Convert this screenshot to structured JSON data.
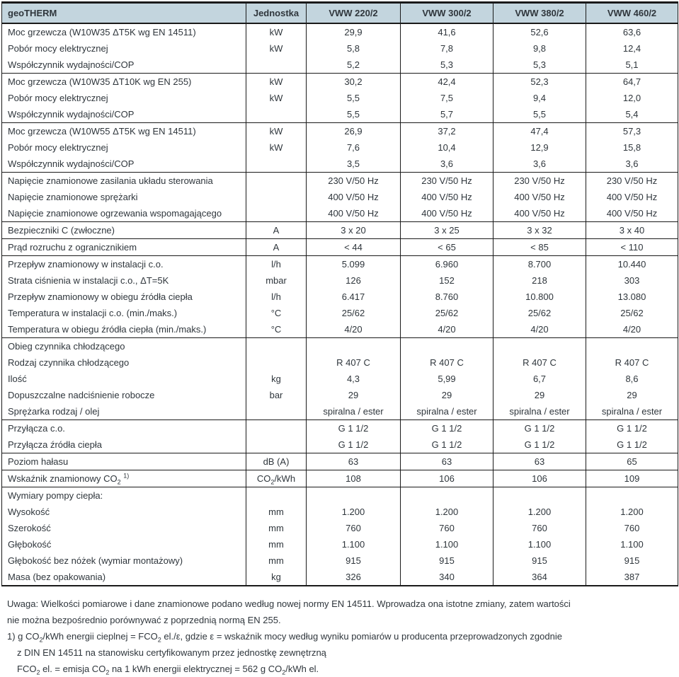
{
  "colors": {
    "header_bg": "#c3d5de",
    "border": "#1a1a1a",
    "text": "#2f363c"
  },
  "header": {
    "product_label": "geoTHERM",
    "columns": [
      "Jednostka",
      "VWW 220/2",
      "VWW 300/2",
      "VWW 380/2",
      "VWW 460/2"
    ]
  },
  "table": {
    "groups": [
      {
        "rows": [
          {
            "label": "Moc grzewcza (W10W35 ΔT5K wg EN 14511)",
            "unit": "kW",
            "values": [
              "29,9",
              "41,6",
              "52,6",
              "63,6"
            ]
          },
          {
            "label": "Pobór mocy elektrycznej",
            "unit": "kW",
            "values": [
              "5,8",
              "7,8",
              "9,8",
              "12,4"
            ]
          },
          {
            "label": "Współczynnik wydajności/COP",
            "unit": "",
            "values": [
              "5,2",
              "5,3",
              "5,3",
              "5,1"
            ]
          }
        ]
      },
      {
        "rows": [
          {
            "label": "Moc grzewcza (W10W35 ΔT10K wg EN 255)",
            "unit": "kW",
            "values": [
              "30,2",
              "42,4",
              "52,3",
              "64,7"
            ]
          },
          {
            "label": "Pobór mocy elektrycznej",
            "unit": "kW",
            "values": [
              "5,5",
              "7,5",
              "9,4",
              "12,0"
            ]
          },
          {
            "label": "Współczynnik wydajności/COP",
            "unit": "",
            "values": [
              "5,5",
              "5,7",
              "5,5",
              "5,4"
            ]
          }
        ]
      },
      {
        "rows": [
          {
            "label": "Moc grzewcza (W10W55 ΔT5K wg EN 14511)",
            "unit": "kW",
            "values": [
              "26,9",
              "37,2",
              "47,4",
              "57,3"
            ]
          },
          {
            "label": "Pobór mocy elektrycznej",
            "unit": "kW",
            "values": [
              "7,6",
              "10,4",
              "12,9",
              "15,8"
            ]
          },
          {
            "label": "Współczynnik wydajności/COP",
            "unit": "",
            "values": [
              "3,5",
              "3,6",
              "3,6",
              "3,6"
            ]
          }
        ]
      },
      {
        "rows": [
          {
            "label": "Napięcie znamionowe zasilania układu sterowania",
            "unit": "",
            "values": [
              "230 V/50 Hz",
              "230 V/50 Hz",
              "230 V/50 Hz",
              "230 V/50 Hz"
            ]
          },
          {
            "label": "Napięcie znamionowe sprężarki",
            "unit": "",
            "values": [
              "400 V/50 Hz",
              "400 V/50 Hz",
              "400 V/50 Hz",
              "400 V/50 Hz"
            ]
          },
          {
            "label": "Napięcie znamionowe ogrzewania wspomagającego",
            "unit": "",
            "values": [
              "400 V/50 Hz",
              "400 V/50 Hz",
              "400 V/50 Hz",
              "400 V/50 Hz"
            ]
          }
        ]
      },
      {
        "rows": [
          {
            "label": "Bezpieczniki C (zwłoczne)",
            "unit": "A",
            "values": [
              "3 x 20",
              "3 x 25",
              "3 x 32",
              "3 x 40"
            ]
          }
        ]
      },
      {
        "rows": [
          {
            "label": "Prąd rozruchu z ogranicznikiem",
            "unit": "A",
            "values": [
              "< 44",
              "< 65",
              "< 85",
              "< 110"
            ]
          }
        ]
      },
      {
        "rows": [
          {
            "label": "Przepływ znamionowy w instalacji c.o.",
            "unit": "l/h",
            "values": [
              "5.099",
              "6.960",
              "8.700",
              "10.440"
            ]
          },
          {
            "label": "Strata ciśnienia w instalacji c.o., ΔT=5K",
            "unit": "mbar",
            "values": [
              "126",
              "152",
              "218",
              "303"
            ]
          },
          {
            "label": "Przepływ znamionowy w obiegu źródła ciepła",
            "unit": "l/h",
            "values": [
              "6.417",
              "8.760",
              "10.800",
              "13.080"
            ]
          },
          {
            "label": "Temperatura w instalacji c.o. (min./maks.)",
            "unit": "°C",
            "values": [
              "25/62",
              "25/62",
              "25/62",
              "25/62"
            ]
          },
          {
            "label": "Temperatura w obiegu źródła ciepła (min./maks.)",
            "unit": "°C",
            "values": [
              "4/20",
              "4/20",
              "4/20",
              "4/20"
            ]
          }
        ]
      },
      {
        "rows": [
          {
            "label": "Obieg czynnika chłodzącego",
            "unit": "",
            "values": [
              "",
              "",
              "",
              ""
            ]
          },
          {
            "label": "Rodzaj czynnika chłodzącego",
            "unit": "",
            "values": [
              "R 407 C",
              "R 407 C",
              "R 407 C",
              "R 407 C"
            ]
          },
          {
            "label": "Ilość",
            "unit": "kg",
            "values": [
              "4,3",
              "5,99",
              "6,7",
              "8,6"
            ]
          },
          {
            "label": "Dopuszczalne nadciśnienie robocze",
            "unit": "bar",
            "values": [
              "29",
              "29",
              "29",
              "29"
            ]
          },
          {
            "label": "Sprężarka rodzaj / olej",
            "unit": "",
            "values": [
              "spiralna / ester",
              "spiralna / ester",
              "spiralna / ester",
              "spiralna / ester"
            ]
          }
        ]
      },
      {
        "rows": [
          {
            "label": "Przyłącza c.o.",
            "unit": "",
            "values": [
              "G 1 1/2",
              "G 1 1/2",
              "G 1 1/2",
              "G 1 1/2"
            ]
          },
          {
            "label": "Przyłącza źródła ciepła",
            "unit": "",
            "values": [
              "G 1 1/2",
              "G 1 1/2",
              "G 1 1/2",
              "G 1 1/2"
            ]
          }
        ]
      },
      {
        "rows": [
          {
            "label": "Poziom hałasu",
            "unit": "dB (A)",
            "values": [
              "63",
              "63",
              "63",
              "65"
            ]
          }
        ]
      },
      {
        "rows": [
          {
            "label": [
              {
                "t": "Wskaźnik znamionowy CO"
              },
              {
                "t": "2",
                "s": "sub"
              },
              {
                "t": " "
              },
              {
                "t": "1)",
                "s": "sup"
              }
            ],
            "unit": [
              {
                "t": "CO"
              },
              {
                "t": "2",
                "s": "sub"
              },
              {
                "t": "/kWh"
              }
            ],
            "values": [
              "108",
              "106",
              "106",
              "109"
            ]
          }
        ]
      },
      {
        "rows": [
          {
            "label": "Wymiary pompy ciepła:",
            "unit": "",
            "values": [
              "",
              "",
              "",
              ""
            ]
          },
          {
            "label": "Wysokość",
            "unit": "mm",
            "values": [
              "1.200",
              "1.200",
              "1.200",
              "1.200"
            ]
          },
          {
            "label": "Szerokość",
            "unit": "mm",
            "values": [
              "760",
              "760",
              "760",
              "760"
            ]
          },
          {
            "label": "Głębokość",
            "unit": "mm",
            "values": [
              "1.100",
              "1.100",
              "1.100",
              "1.100"
            ]
          },
          {
            "label": "Głębokość bez nóżek (wymiar montażowy)",
            "unit": "mm",
            "values": [
              "915",
              "915",
              "915",
              "915"
            ]
          },
          {
            "label": "Masa (bez opakowania)",
            "unit": "kg",
            "values": [
              "326",
              "340",
              "364",
              "387"
            ]
          }
        ]
      }
    ]
  },
  "notes": {
    "lines": [
      {
        "indent": false,
        "segments": [
          {
            "t": "Uwaga: Wielkości pomiarowe i dane znamionowe podano według nowej normy EN 14511. Wprowadza ona istotne zmiany, zatem wartości"
          }
        ]
      },
      {
        "indent": false,
        "segments": [
          {
            "t": "nie można bezpośrednio porównywać z poprzednią normą EN 255."
          }
        ]
      },
      {
        "indent": false,
        "segments": [
          {
            "t": "1) g CO"
          },
          {
            "t": "2",
            "s": "sub"
          },
          {
            "t": "/kWh energii cieplnej = FCO"
          },
          {
            "t": "2",
            "s": "sub"
          },
          {
            "t": " el./ε, gdzie ε = wskaźnik mocy według wyniku pomiarów u producenta przeprowadzonych zgodnie"
          }
        ]
      },
      {
        "indent": true,
        "segments": [
          {
            "t": "z DIN EN 14511 na stanowisku certyfikowanym przez jednostkę zewnętrzną"
          }
        ]
      },
      {
        "indent": true,
        "segments": [
          {
            "t": "FCO"
          },
          {
            "t": "2",
            "s": "sub"
          },
          {
            "t": " el. = emisja CO"
          },
          {
            "t": "2",
            "s": "sub"
          },
          {
            "t": " na 1 kWh energii elektrycznej = 562 g CO"
          },
          {
            "t": "2",
            "s": "sub"
          },
          {
            "t": "/kWh el."
          }
        ]
      }
    ]
  }
}
